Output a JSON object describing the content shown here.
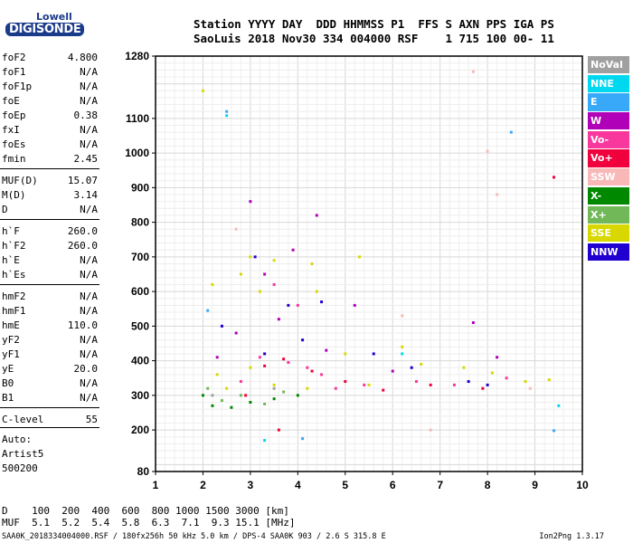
{
  "logo": {
    "line1": "Lowell",
    "line2": "DIGISONDE"
  },
  "header": {
    "line1": "Station YYYY DAY  DDD HHMMSS P1  FFS S AXN PPS IGA PS",
    "line2": "SaoLuis 2018 Nov30 334 004000 RSF    1 715 100 00- 11"
  },
  "params": [
    {
      "name": "foF2",
      "value": "4.800"
    },
    {
      "name": "foF1",
      "value": "N/A"
    },
    {
      "name": "foF1p",
      "value": "N/A"
    },
    {
      "name": "foE",
      "value": "N/A"
    },
    {
      "name": "foEp",
      "value": "0.38"
    },
    {
      "name": "fxI",
      "value": "N/A"
    },
    {
      "name": "foEs",
      "value": "N/A"
    },
    {
      "name": "fmin",
      "value": "2.45"
    },
    {
      "name": "MUF(D)",
      "value": "15.07"
    },
    {
      "name": "M(D)",
      "value": "3.14"
    },
    {
      "name": "D",
      "value": "N/A"
    },
    {
      "name": "h`F",
      "value": "260.0"
    },
    {
      "name": "h`F2",
      "value": "260.0"
    },
    {
      "name": "h`E",
      "value": "N/A"
    },
    {
      "name": "h`Es",
      "value": "N/A"
    },
    {
      "name": "hmF2",
      "value": "N/A"
    },
    {
      "name": "hmF1",
      "value": "N/A"
    },
    {
      "name": "hmE",
      "value": "110.0"
    },
    {
      "name": "yF2",
      "value": "N/A"
    },
    {
      "name": "yF1",
      "value": "N/A"
    },
    {
      "name": "yE",
      "value": "20.0"
    },
    {
      "name": "B0",
      "value": "N/A"
    },
    {
      "name": "B1",
      "value": "N/A"
    },
    {
      "name": "C-level",
      "value": "55"
    }
  ],
  "autoscale": {
    "line1": "Auto:",
    "line2": "Artist5",
    "line3": "500200"
  },
  "legend": [
    {
      "label": "NoVal",
      "color": "#a0a0a0"
    },
    {
      "label": "NNE",
      "color": "#00d8f0"
    },
    {
      "label": "E",
      "color": "#38a8f8"
    },
    {
      "label": "W",
      "color": "#b000b8"
    },
    {
      "label": "Vo-",
      "color": "#f8389c"
    },
    {
      "label": "Vo+",
      "color": "#f0003c"
    },
    {
      "label": "SSW",
      "color": "#f8b8b8"
    },
    {
      "label": "X-",
      "color": "#008800"
    },
    {
      "label": "X+",
      "color": "#70b858"
    },
    {
      "label": "SSE",
      "color": "#d8d800"
    },
    {
      "label": "NNW",
      "color": "#2000d0"
    }
  ],
  "dmuf": {
    "line1": "D    100  200  400  600  800 1000 1500 3000 [km]",
    "line2": "MUF  5.1  5.2  5.4  5.8  6.3  7.1  9.3 15.1 [MHz]"
  },
  "footer": {
    "left": "SAA0K_2018334004000.RSF / 180fx256h 50 kHz 5.0 km / DPS-4 SAA0K 903 / 2.6 S 315.8 E",
    "right": "Ion2Png 1.3.17"
  },
  "chart_data": {
    "type": "scatter",
    "title": "",
    "xlabel": "",
    "ylabel": "",
    "x_ticks": [
      "1",
      "2",
      "3",
      "4",
      "5",
      "6",
      "7",
      "8",
      "9",
      "10"
    ],
    "y_ticks": [
      "80",
      "200",
      "300",
      "400",
      "500",
      "600",
      "700",
      "800",
      "900",
      "1000",
      "1100",
      "1280"
    ],
    "xlim": [
      1,
      10
    ],
    "ylim": [
      80,
      1280
    ],
    "grid": true,
    "legend_position": "right",
    "series": [
      {
        "name": "NoVal",
        "color": "#a0a0a0",
        "points": [
          [
            2.2,
            300
          ],
          [
            3.5,
            320
          ]
        ]
      },
      {
        "name": "NNE",
        "color": "#00d8f0",
        "points": [
          [
            2.5,
            1108
          ],
          [
            3.3,
            170
          ],
          [
            6.2,
            420
          ],
          [
            9.5,
            270
          ]
        ]
      },
      {
        "name": "E",
        "color": "#38a8f8",
        "points": [
          [
            2.5,
            1120
          ],
          [
            2.1,
            545
          ],
          [
            4.1,
            175
          ],
          [
            8.5,
            1060
          ],
          [
            9.4,
            198
          ]
        ]
      },
      {
        "name": "W",
        "color": "#b000b8",
        "points": [
          [
            3.0,
            860
          ],
          [
            3.6,
            520
          ],
          [
            4.4,
            820
          ],
          [
            3.9,
            720
          ],
          [
            2.7,
            480
          ],
          [
            4.6,
            430
          ],
          [
            5.2,
            560
          ],
          [
            3.3,
            650
          ],
          [
            7.7,
            510
          ],
          [
            8.2,
            410
          ],
          [
            6.0,
            370
          ],
          [
            2.3,
            410
          ]
        ]
      },
      {
        "name": "Vo-",
        "color": "#f8389c",
        "points": [
          [
            3.2,
            410
          ],
          [
            3.8,
            395
          ],
          [
            4.2,
            380
          ],
          [
            4.5,
            360
          ],
          [
            4.8,
            320
          ],
          [
            5.4,
            330
          ],
          [
            6.5,
            340
          ],
          [
            7.3,
            330
          ],
          [
            3.5,
            620
          ],
          [
            4.0,
            560
          ],
          [
            2.8,
            340
          ],
          [
            8.4,
            350
          ]
        ]
      },
      {
        "name": "Vo+",
        "color": "#f0003c",
        "points": [
          [
            3.3,
            385
          ],
          [
            3.7,
            405
          ],
          [
            4.3,
            370
          ],
          [
            5.0,
            340
          ],
          [
            5.8,
            315
          ],
          [
            6.8,
            330
          ],
          [
            7.9,
            320
          ],
          [
            2.9,
            300
          ],
          [
            9.4,
            930
          ],
          [
            3.6,
            200
          ]
        ]
      },
      {
        "name": "SSW",
        "color": "#f8b8b8",
        "points": [
          [
            7.7,
            1235
          ],
          [
            8.2,
            880
          ],
          [
            8.0,
            1005
          ],
          [
            6.2,
            530
          ],
          [
            8.9,
            320
          ],
          [
            2.7,
            780
          ],
          [
            6.8,
            200
          ]
        ]
      },
      {
        "name": "X-",
        "color": "#008800",
        "points": [
          [
            2.2,
            270
          ],
          [
            2.6,
            265
          ],
          [
            3.0,
            280
          ],
          [
            3.5,
            290
          ],
          [
            2.0,
            300
          ],
          [
            4.0,
            300
          ]
        ]
      },
      {
        "name": "X+",
        "color": "#70b858",
        "points": [
          [
            2.4,
            285
          ],
          [
            2.8,
            300
          ],
          [
            3.3,
            275
          ],
          [
            2.1,
            320
          ],
          [
            3.7,
            310
          ]
        ]
      },
      {
        "name": "SSE",
        "color": "#d8d800",
        "points": [
          [
            2.0,
            1180
          ],
          [
            2.2,
            620
          ],
          [
            3.0,
            700
          ],
          [
            3.5,
            690
          ],
          [
            4.3,
            680
          ],
          [
            5.3,
            700
          ],
          [
            3.2,
            600
          ],
          [
            4.4,
            600
          ],
          [
            2.8,
            650
          ],
          [
            5.0,
            420
          ],
          [
            6.2,
            440
          ],
          [
            6.6,
            390
          ],
          [
            7.5,
            380
          ],
          [
            8.1,
            365
          ],
          [
            8.8,
            340
          ],
          [
            9.3,
            345
          ],
          [
            2.5,
            320
          ],
          [
            3.5,
            330
          ],
          [
            4.2,
            320
          ],
          [
            5.5,
            330
          ],
          [
            2.3,
            360
          ],
          [
            3.0,
            380
          ]
        ]
      },
      {
        "name": "NNW",
        "color": "#2000d0",
        "points": [
          [
            3.1,
            700
          ],
          [
            3.8,
            560
          ],
          [
            4.5,
            570
          ],
          [
            2.4,
            500
          ],
          [
            5.6,
            420
          ],
          [
            6.4,
            380
          ],
          [
            7.6,
            340
          ],
          [
            8.0,
            330
          ],
          [
            4.1,
            460
          ],
          [
            3.3,
            420
          ]
        ]
      }
    ]
  }
}
